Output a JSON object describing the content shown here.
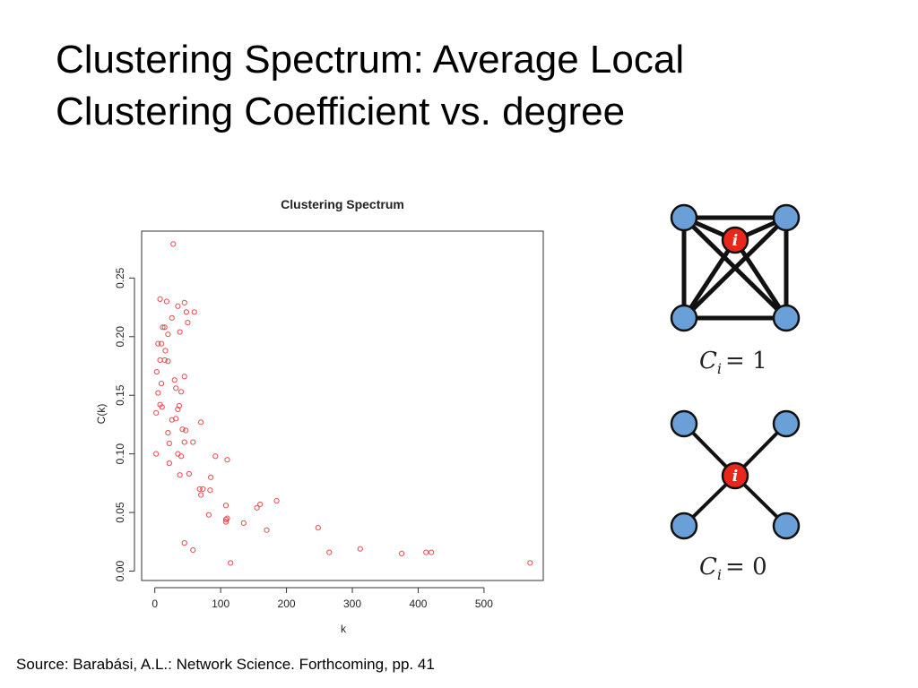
{
  "slide": {
    "title_line1": "Clustering Spectrum: Average Local",
    "title_line2": "Clustering Coefficient vs. degree",
    "source": "Source: Barabási, A.L.: Network Science. Forthcoming, pp. 41"
  },
  "chart_data": {
    "type": "scatter",
    "title": "Clustering Spectrum",
    "xlabel": "k",
    "ylabel": "C(k)",
    "xlim": [
      -20,
      590
    ],
    "ylim": [
      -0.008,
      0.29
    ],
    "x_ticks": [
      0,
      100,
      200,
      300,
      400,
      500
    ],
    "y_ticks": [
      0.0,
      0.05,
      0.1,
      0.15,
      0.2,
      0.25
    ],
    "x_tick_labels": [
      "0",
      "100",
      "200",
      "300",
      "400",
      "500"
    ],
    "y_tick_labels": [
      "0.00",
      "0.05",
      "0.10",
      "0.15",
      "0.20",
      "0.25"
    ],
    "grid": false,
    "marker": "open-circle",
    "color": "#e8494f",
    "points": [
      [
        28,
        0.279
      ],
      [
        8,
        0.232
      ],
      [
        18,
        0.23
      ],
      [
        45,
        0.229
      ],
      [
        35,
        0.226
      ],
      [
        48,
        0.221
      ],
      [
        60,
        0.221
      ],
      [
        26,
        0.216
      ],
      [
        50,
        0.212
      ],
      [
        12,
        0.208
      ],
      [
        15,
        0.208
      ],
      [
        38,
        0.204
      ],
      [
        20,
        0.202
      ],
      [
        5,
        0.194
      ],
      [
        10,
        0.194
      ],
      [
        16,
        0.188
      ],
      [
        8,
        0.18
      ],
      [
        15,
        0.18
      ],
      [
        20,
        0.179
      ],
      [
        3,
        0.17
      ],
      [
        45,
        0.166
      ],
      [
        30,
        0.163
      ],
      [
        10,
        0.16
      ],
      [
        32,
        0.156
      ],
      [
        40,
        0.153
      ],
      [
        5,
        0.152
      ],
      [
        8,
        0.142
      ],
      [
        11,
        0.14
      ],
      [
        37,
        0.141
      ],
      [
        35,
        0.138
      ],
      [
        2,
        0.135
      ],
      [
        32,
        0.13
      ],
      [
        26,
        0.129
      ],
      [
        70,
        0.127
      ],
      [
        42,
        0.121
      ],
      [
        47,
        0.12
      ],
      [
        20,
        0.118
      ],
      [
        45,
        0.11
      ],
      [
        58,
        0.11
      ],
      [
        22,
        0.109
      ],
      [
        35,
        0.1
      ],
      [
        2,
        0.1
      ],
      [
        40,
        0.098
      ],
      [
        92,
        0.098
      ],
      [
        110,
        0.095
      ],
      [
        22,
        0.092
      ],
      [
        52,
        0.083
      ],
      [
        38,
        0.082
      ],
      [
        85,
        0.08
      ],
      [
        68,
        0.07
      ],
      [
        73,
        0.07
      ],
      [
        84,
        0.069
      ],
      [
        70,
        0.065
      ],
      [
        185,
        0.06
      ],
      [
        160,
        0.057
      ],
      [
        108,
        0.056
      ],
      [
        155,
        0.054
      ],
      [
        82,
        0.048
      ],
      [
        110,
        0.045
      ],
      [
        108,
        0.044
      ],
      [
        108,
        0.042
      ],
      [
        135,
        0.041
      ],
      [
        248,
        0.037
      ],
      [
        170,
        0.035
      ],
      [
        45,
        0.024
      ],
      [
        58,
        0.018
      ],
      [
        312,
        0.019
      ],
      [
        265,
        0.016
      ],
      [
        375,
        0.015
      ],
      [
        412,
        0.016
      ],
      [
        420,
        0.016
      ],
      [
        115,
        0.007
      ],
      [
        570,
        0.007
      ]
    ]
  },
  "diagrams": [
    {
      "label_c": "C",
      "label_sub": "i",
      "label_rhs": "= 1",
      "center_label": "i"
    },
    {
      "label_c": "C",
      "label_sub": "i",
      "label_rhs": "= 0",
      "center_label": "i"
    }
  ],
  "colors": {
    "node_blue": "#6a9fd8",
    "node_red": "#e8261b",
    "scatter_red": "#e8494f"
  }
}
